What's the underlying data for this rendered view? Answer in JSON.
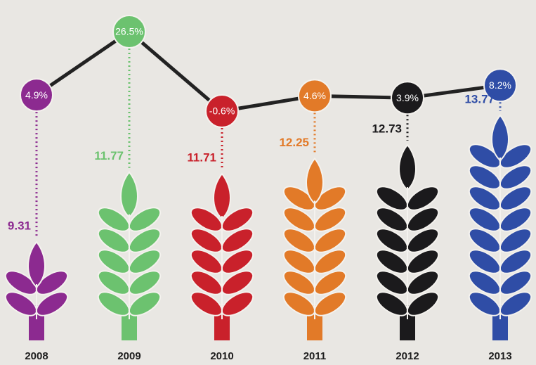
{
  "chart_data": {
    "type": "bar",
    "categories": [
      "2008",
      "2009",
      "2010",
      "2011",
      "2012",
      "2013"
    ],
    "values": [
      9.31,
      11.77,
      11.71,
      12.25,
      12.73,
      13.77
    ],
    "colors": [
      "#8c2a90",
      "#6cc26f",
      "#c9212b",
      "#e27a28",
      "#1b1a1c",
      "#2f4da6"
    ],
    "growth": {
      "type": "line",
      "values": [
        4.9,
        26.5,
        -0.6,
        4.6,
        3.9,
        8.2
      ],
      "value_labels": [
        "4.9%",
        "26.5%",
        "-0.6%",
        "4.6%",
        "3.9%",
        "8.2%"
      ],
      "color": "#222222"
    }
  }
}
